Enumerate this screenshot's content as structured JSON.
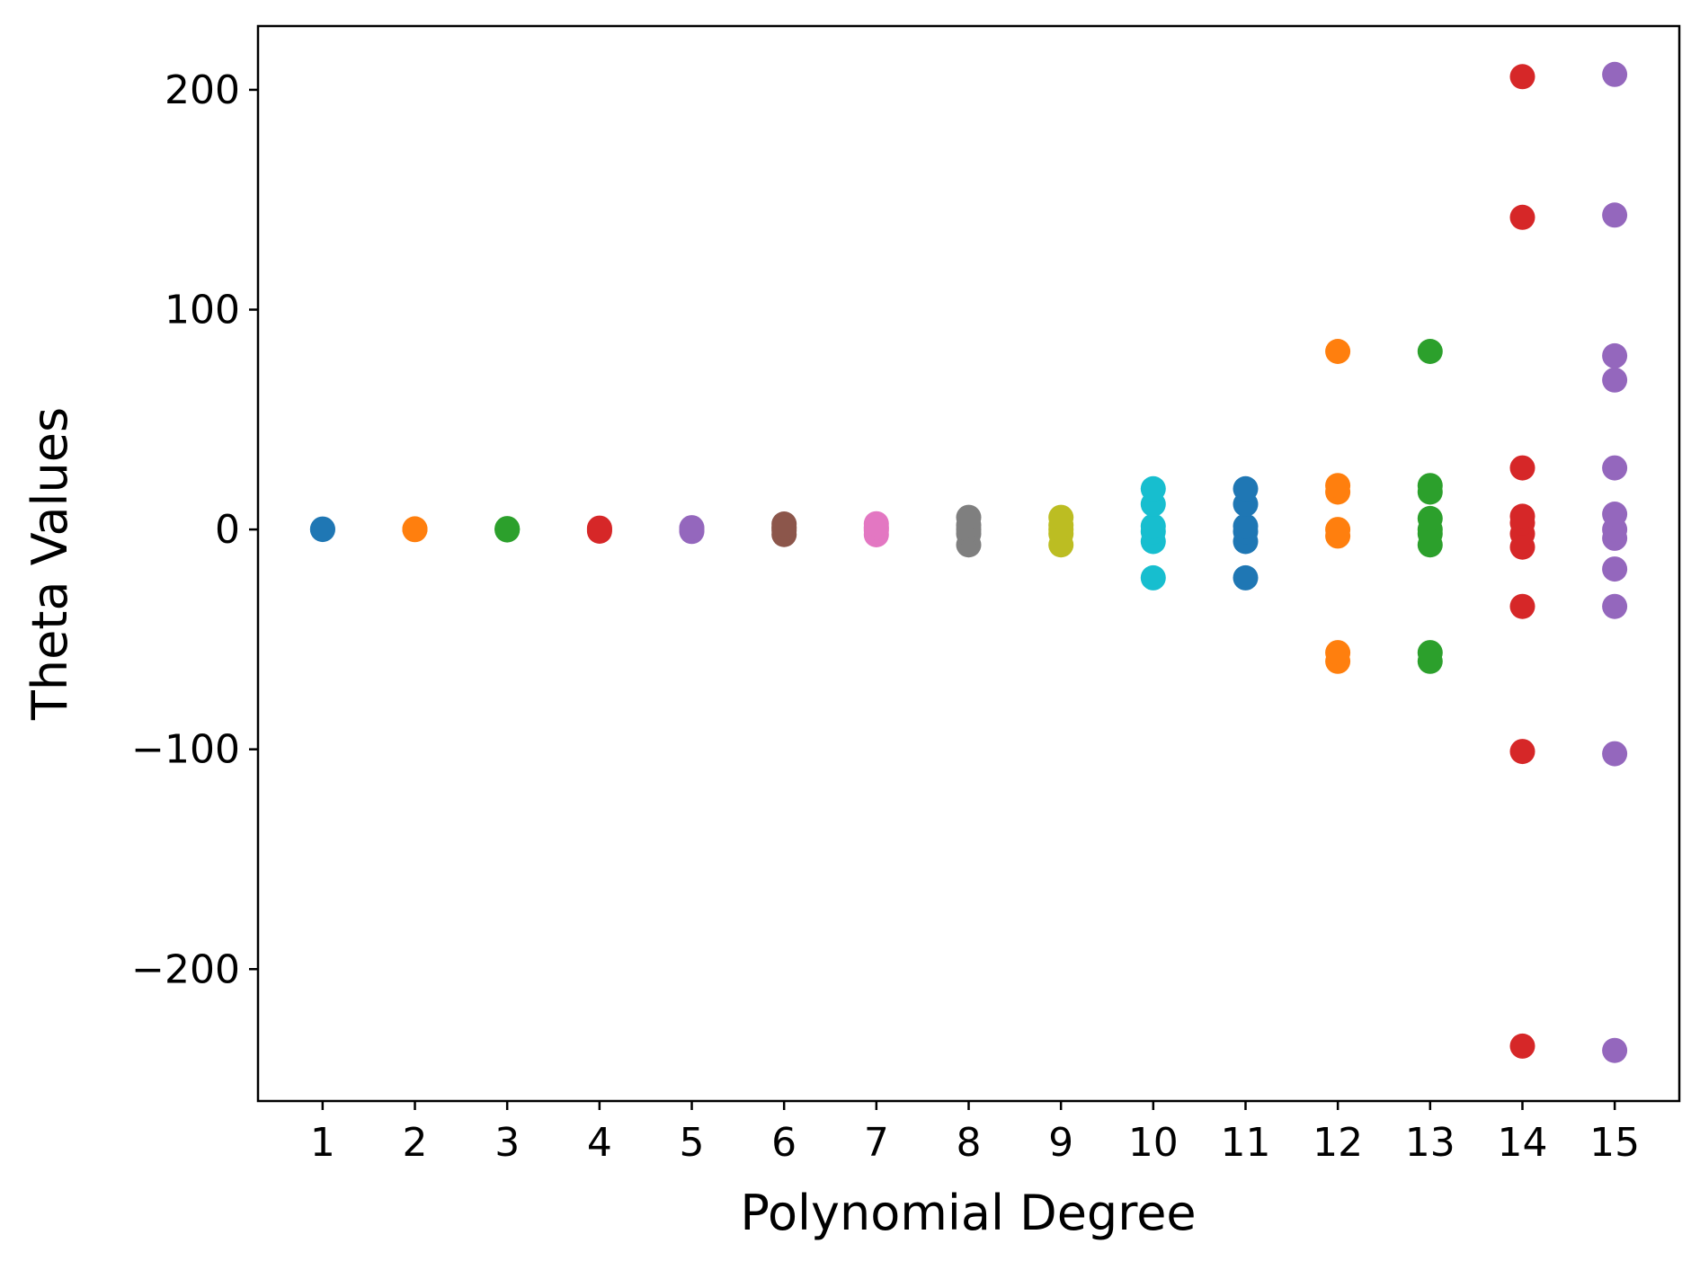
{
  "chart_data": {
    "type": "scatter",
    "title": "",
    "xlabel": "Polynomial Degree",
    "ylabel": "Theta Values",
    "xlim": [
      0.3,
      15.7
    ],
    "ylim": [
      -260,
      229
    ],
    "x_ticks": [
      1,
      2,
      3,
      4,
      5,
      6,
      7,
      8,
      9,
      10,
      11,
      12,
      13,
      14,
      15
    ],
    "x_tick_labels": [
      "1",
      "2",
      "3",
      "4",
      "5",
      "6",
      "7",
      "8",
      "9",
      "10",
      "11",
      "12",
      "13",
      "14",
      "15"
    ],
    "y_ticks": [
      -200,
      -100,
      0,
      100,
      200
    ],
    "y_tick_labels": [
      "−200",
      "−100",
      "0",
      "100",
      "200"
    ],
    "grid": false,
    "legend": "none",
    "series": [
      {
        "x": 1,
        "color": "#1f77b4",
        "values": [
          0.0,
          0.2
        ]
      },
      {
        "x": 2,
        "color": "#ff7f0e",
        "values": [
          -0.1,
          0.1,
          0.3
        ]
      },
      {
        "x": 3,
        "color": "#2ca02c",
        "values": [
          -0.2,
          0.1,
          0.4
        ]
      },
      {
        "x": 4,
        "color": "#d62728",
        "values": [
          -0.8,
          0.0,
          0.6
        ]
      },
      {
        "x": 5,
        "color": "#9467bd",
        "values": [
          -0.9,
          -0.3,
          0.3,
          0.8
        ]
      },
      {
        "x": 6,
        "color": "#8c564b",
        "values": [
          -2.3,
          -0.5,
          0.5,
          1.1,
          2.5
        ]
      },
      {
        "x": 7,
        "color": "#e377c2",
        "values": [
          -2.4,
          -0.5,
          0.4,
          1.0,
          2.6
        ]
      },
      {
        "x": 8,
        "color": "#7f7f7f",
        "values": [
          -7.0,
          -2.0,
          0.0,
          2.0,
          5.5
        ]
      },
      {
        "x": 9,
        "color": "#bcbd22",
        "values": [
          -7.0,
          -2.0,
          0.0,
          2.0,
          5.5
        ]
      },
      {
        "x": 10,
        "color": "#17becf",
        "values": [
          -22.0,
          -5.5,
          -1.0,
          1.5,
          11.5,
          18.5
        ]
      },
      {
        "x": 11,
        "color": "#1f77b4",
        "values": [
          -22.0,
          -5.5,
          -1.0,
          1.5,
          11.5,
          18.5
        ]
      },
      {
        "x": 12,
        "color": "#ff7f0e",
        "values": [
          -60.0,
          -56.0,
          -3.0,
          0.0,
          17.0,
          20.0,
          81.0
        ]
      },
      {
        "x": 13,
        "color": "#2ca02c",
        "values": [
          -60.0,
          -56.0,
          -7.0,
          -2.0,
          0.0,
          5.0,
          17.0,
          20.0,
          81.0
        ]
      },
      {
        "x": 14,
        "color": "#d62728",
        "values": [
          -235.0,
          -101.0,
          -35.0,
          -8.0,
          -2.0,
          3.0,
          6.0,
          28.0,
          142.0,
          206.0
        ]
      },
      {
        "x": 15,
        "color": "#9467bd",
        "values": [
          -237.0,
          -102.0,
          -35.0,
          -18.0,
          -4.0,
          0.0,
          7.0,
          28.0,
          68.0,
          79.0,
          143.0,
          207.0
        ]
      }
    ]
  }
}
